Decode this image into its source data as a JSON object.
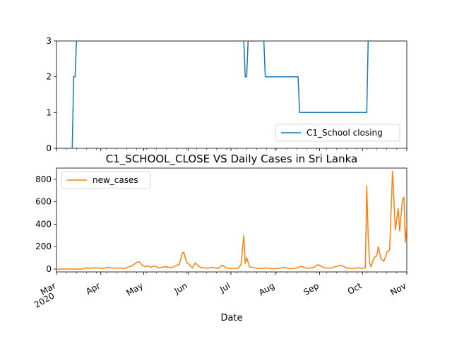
{
  "chart_data": [
    {
      "type": "line",
      "x_tick_labels": [
        "Mar",
        "Apr",
        "May",
        "Jun",
        "Jul",
        "Aug",
        "Sep",
        "Oct",
        "Nov"
      ],
      "x_year_label": "2020",
      "ylim": [
        0,
        3
      ],
      "y_ticks": [
        "0",
        "1",
        "2",
        "3"
      ],
      "legend": "bottom-right",
      "series": [
        {
          "name": "C1_School closing",
          "color": "#1f77b4",
          "points": [
            [
              "2020-03-01",
              0
            ],
            [
              "2020-03-12",
              0
            ],
            [
              "2020-03-13",
              2
            ],
            [
              "2020-03-14",
              2
            ],
            [
              "2020-03-15",
              3
            ],
            [
              "2020-07-10",
              3
            ],
            [
              "2020-07-11",
              2
            ],
            [
              "2020-07-12",
              2
            ],
            [
              "2020-07-13",
              3
            ],
            [
              "2020-07-24",
              3
            ],
            [
              "2020-07-25",
              2
            ],
            [
              "2020-08-17",
              2
            ],
            [
              "2020-08-18",
              1
            ],
            [
              "2020-10-04",
              1
            ],
            [
              "2020-10-05",
              3
            ],
            [
              "2020-11-01",
              3
            ]
          ]
        }
      ]
    },
    {
      "type": "line",
      "title": "C1_SCHOOL_CLOSE VS Daily Cases in Sri Lanka",
      "xlabel": "Date",
      "x_tick_labels": [
        "Mar",
        "Apr",
        "May",
        "Jun",
        "Jul",
        "Aug",
        "Sep",
        "Oct",
        "Nov"
      ],
      "x_year_label": "2020",
      "ylim": [
        -25,
        900
      ],
      "y_ticks": [
        "0",
        "200",
        "400",
        "600",
        "800"
      ],
      "legend": "top-left",
      "series": [
        {
          "name": "new_cases",
          "color": "#ff7f0e",
          "points": [
            [
              "2020-03-01",
              0
            ],
            [
              "2020-03-18",
              0
            ],
            [
              "2020-03-22",
              10
            ],
            [
              "2020-03-25",
              8
            ],
            [
              "2020-03-28",
              12
            ],
            [
              "2020-04-02",
              6
            ],
            [
              "2020-04-06",
              14
            ],
            [
              "2020-04-10",
              8
            ],
            [
              "2020-04-14",
              10
            ],
            [
              "2020-04-18",
              5
            ],
            [
              "2020-04-20",
              18
            ],
            [
              "2020-04-22",
              25
            ],
            [
              "2020-04-24",
              40
            ],
            [
              "2020-04-26",
              60
            ],
            [
              "2020-04-28",
              65
            ],
            [
              "2020-04-30",
              35
            ],
            [
              "2020-05-02",
              20
            ],
            [
              "2020-05-04",
              30
            ],
            [
              "2020-05-06",
              15
            ],
            [
              "2020-05-08",
              28
            ],
            [
              "2020-05-12",
              10
            ],
            [
              "2020-05-16",
              22
            ],
            [
              "2020-05-20",
              12
            ],
            [
              "2020-05-23",
              25
            ],
            [
              "2020-05-26",
              45
            ],
            [
              "2020-05-28",
              145
            ],
            [
              "2020-05-29",
              150
            ],
            [
              "2020-05-31",
              60
            ],
            [
              "2020-06-02",
              40
            ],
            [
              "2020-06-04",
              10
            ],
            [
              "2020-06-06",
              55
            ],
            [
              "2020-06-08",
              30
            ],
            [
              "2020-06-10",
              15
            ],
            [
              "2020-06-14",
              8
            ],
            [
              "2020-06-18",
              15
            ],
            [
              "2020-06-22",
              5
            ],
            [
              "2020-06-25",
              35
            ],
            [
              "2020-06-28",
              10
            ],
            [
              "2020-07-02",
              5
            ],
            [
              "2020-07-06",
              8
            ],
            [
              "2020-07-08",
              40
            ],
            [
              "2020-07-10",
              300
            ],
            [
              "2020-07-11",
              50
            ],
            [
              "2020-07-12",
              100
            ],
            [
              "2020-07-14",
              20
            ],
            [
              "2020-07-18",
              10
            ],
            [
              "2020-07-22",
              5
            ],
            [
              "2020-07-26",
              10
            ],
            [
              "2020-07-30",
              3
            ],
            [
              "2020-08-03",
              6
            ],
            [
              "2020-08-07",
              15
            ],
            [
              "2020-08-11",
              4
            ],
            [
              "2020-08-15",
              6
            ],
            [
              "2020-08-19",
              25
            ],
            [
              "2020-08-23",
              8
            ],
            [
              "2020-08-27",
              10
            ],
            [
              "2020-08-31",
              40
            ],
            [
              "2020-09-04",
              12
            ],
            [
              "2020-09-08",
              8
            ],
            [
              "2020-09-12",
              20
            ],
            [
              "2020-09-16",
              35
            ],
            [
              "2020-09-20",
              10
            ],
            [
              "2020-09-24",
              5
            ],
            [
              "2020-09-28",
              12
            ],
            [
              "2020-10-01",
              6
            ],
            [
              "2020-10-03",
              15
            ],
            [
              "2020-10-04",
              740
            ],
            [
              "2020-10-05",
              300
            ],
            [
              "2020-10-06",
              50
            ],
            [
              "2020-10-07",
              20
            ],
            [
              "2020-10-09",
              100
            ],
            [
              "2020-10-11",
              120
            ],
            [
              "2020-10-12",
              200
            ],
            [
              "2020-10-14",
              90
            ],
            [
              "2020-10-16",
              70
            ],
            [
              "2020-10-18",
              150
            ],
            [
              "2020-10-20",
              170
            ],
            [
              "2020-10-22",
              870
            ],
            [
              "2020-10-24",
              350
            ],
            [
              "2020-10-26",
              540
            ],
            [
              "2020-10-27",
              340
            ],
            [
              "2020-10-29",
              620
            ],
            [
              "2020-10-30",
              640
            ],
            [
              "2020-10-31",
              240
            ],
            [
              "2020-11-01",
              400
            ]
          ]
        }
      ]
    }
  ]
}
